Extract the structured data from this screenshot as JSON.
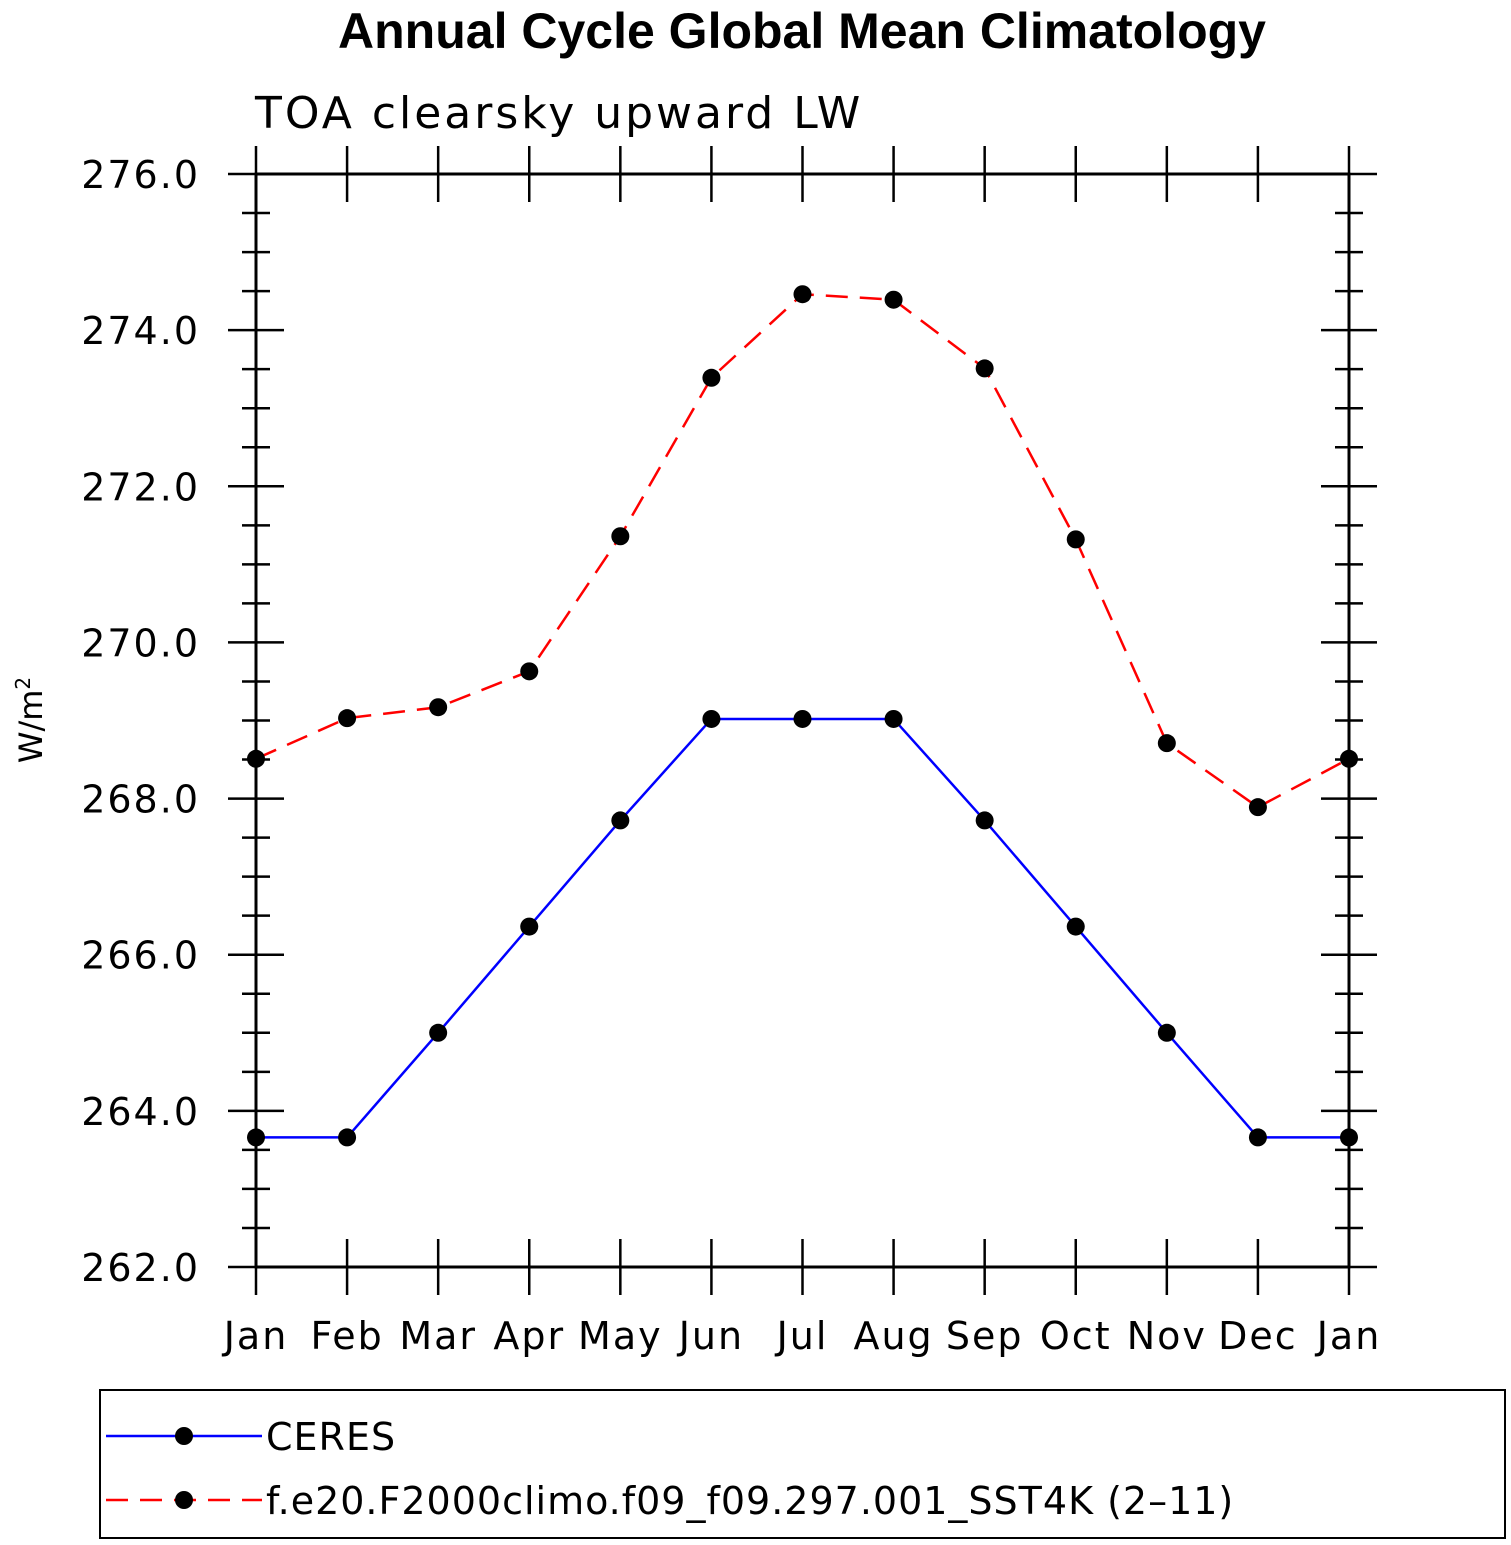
{
  "chart_data": {
    "type": "line",
    "title": "Annual Cycle Global Mean Climatology",
    "subtitle": "TOA clearsky upward LW",
    "ylabel": "W/m",
    "ylabel_sup": "2",
    "xlabel": "",
    "categories": [
      "Jan",
      "Feb",
      "Mar",
      "Apr",
      "May",
      "Jun",
      "Jul",
      "Aug",
      "Sep",
      "Oct",
      "Nov",
      "Dec",
      "Jan"
    ],
    "ylim": [
      262.0,
      276.0
    ],
    "yticks": [
      "262.0",
      "264.0",
      "266.0",
      "268.0",
      "270.0",
      "272.0",
      "274.0",
      "276.0"
    ],
    "grid": false,
    "legend_position": "bottom",
    "series": [
      {
        "name": "CERES",
        "color": "#0000ff",
        "dash": "solid",
        "marker": "filled-circle",
        "values": [
          263.66,
          263.66,
          265.0,
          266.36,
          267.72,
          269.02,
          269.02,
          269.02,
          267.72,
          266.36,
          265.0,
          263.66,
          263.66
        ]
      },
      {
        "name": "f.e20.F2000climo.f09_f09.297.001_SST4K (2–11)",
        "color": "#ff0000",
        "dash": "dashed",
        "marker": "filled-circle",
        "values": [
          268.51,
          269.03,
          269.17,
          269.63,
          271.36,
          273.39,
          274.46,
          274.39,
          273.51,
          271.32,
          268.71,
          267.89,
          268.51
        ]
      }
    ]
  }
}
